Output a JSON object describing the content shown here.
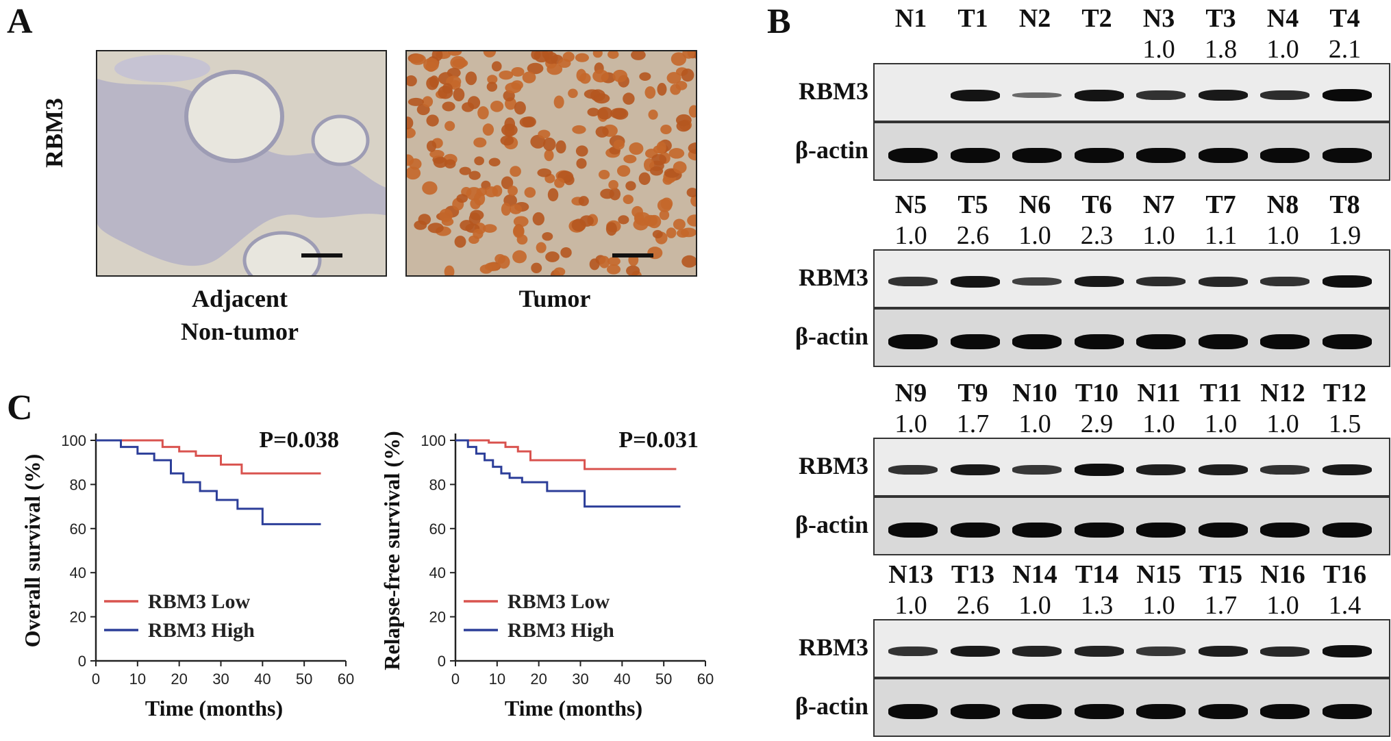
{
  "panels": {
    "A": {
      "letter": "A",
      "stain_label": "RBM3",
      "images": [
        {
          "caption_line1": "Adjacent",
          "caption_line2": "Non-tumor"
        },
        {
          "caption_line1": "Tumor",
          "caption_line2": ""
        }
      ]
    },
    "B": {
      "letter": "B",
      "row_labels": {
        "target": "RBM3",
        "control": "β-actin"
      },
      "blots": [
        {
          "lanes": [
            "N1",
            "T1",
            "N2",
            "T2",
            "N3",
            "T3",
            "N4",
            "T4"
          ],
          "ratios": [
            "",
            "",
            "",
            "",
            "1.0",
            "1.8",
            "1.0",
            "2.1"
          ],
          "intensity": [
            0.0,
            0.9,
            0.05,
            0.9,
            0.6,
            0.85,
            0.65,
            1.0
          ]
        },
        {
          "lanes": [
            "N5",
            "T5",
            "N6",
            "T6",
            "N7",
            "T7",
            "N8",
            "T8"
          ],
          "ratios": [
            "1.0",
            "2.6",
            "1.0",
            "2.3",
            "1.0",
            "1.1",
            "1.0",
            "1.9"
          ],
          "intensity": [
            0.6,
            0.9,
            0.45,
            0.85,
            0.65,
            0.7,
            0.6,
            0.95
          ]
        },
        {
          "lanes": [
            "N9",
            "T9",
            "N10",
            "T10",
            "N11",
            "T11",
            "N12",
            "T12"
          ],
          "ratios": [
            "1.0",
            "1.7",
            "1.0",
            "2.9",
            "1.0",
            "1.0",
            "1.0",
            "1.5"
          ],
          "intensity": [
            0.6,
            0.85,
            0.55,
            0.95,
            0.8,
            0.8,
            0.6,
            0.85
          ]
        },
        {
          "lanes": [
            "N13",
            "T13",
            "N14",
            "T14",
            "N15",
            "T15",
            "N16",
            "T16"
          ],
          "ratios": [
            "1.0",
            "2.6",
            "1.0",
            "1.3",
            "1.0",
            "1.7",
            "1.0",
            "1.4"
          ],
          "intensity": [
            0.6,
            0.85,
            0.75,
            0.75,
            0.55,
            0.8,
            0.7,
            0.95
          ]
        }
      ]
    },
    "C": {
      "letter": "C",
      "charts": [
        {
          "p_value": "P=0.038",
          "ylabel": "Overall survival (%)",
          "xlabel": "Time (months)",
          "xticks": [
            "0",
            "10",
            "20",
            "30",
            "40",
            "50",
            "60"
          ],
          "yticks": [
            "0",
            "20",
            "40",
            "60",
            "80",
            "100"
          ],
          "legend": [
            "RBM3 Low",
            "RBM3 High"
          ]
        },
        {
          "p_value": "P=0.031",
          "ylabel": "Relapse-free survival (%)",
          "xlabel": "Time (months)",
          "xticks": [
            "0",
            "10",
            "20",
            "30",
            "40",
            "50",
            "60"
          ],
          "yticks": [
            "0",
            "20",
            "40",
            "60",
            "80",
            "100"
          ],
          "legend": [
            "RBM3 Low",
            "RBM3 High"
          ]
        }
      ]
    }
  },
  "colors": {
    "low": "#d9534f",
    "high": "#2c3e99"
  },
  "chart_data": [
    {
      "type": "line",
      "xlabel": "Time (months)",
      "ylabel": "Overall survival (%)",
      "xlim": [
        0,
        60
      ],
      "ylim": [
        0,
        100
      ],
      "annotation": "P=0.038",
      "series": [
        {
          "name": "RBM3 Low",
          "x": [
            0,
            12,
            16,
            20,
            24,
            30,
            35,
            54
          ],
          "y": [
            100,
            100,
            97,
            95,
            93,
            89,
            85,
            85
          ]
        },
        {
          "name": "RBM3 High",
          "x": [
            0,
            6,
            10,
            14,
            18,
            21,
            25,
            29,
            34,
            40,
            54
          ],
          "y": [
            100,
            97,
            94,
            91,
            85,
            81,
            77,
            73,
            69,
            62,
            62
          ]
        }
      ]
    },
    {
      "type": "line",
      "xlabel": "Time (months)",
      "ylabel": "Relapse-free survival (%)",
      "xlim": [
        0,
        60
      ],
      "ylim": [
        0,
        100
      ],
      "annotation": "P=0.031",
      "series": [
        {
          "name": "RBM3 Low",
          "x": [
            0,
            8,
            12,
            15,
            18,
            31,
            53
          ],
          "y": [
            100,
            99,
            97,
            95,
            91,
            87,
            87
          ]
        },
        {
          "name": "RBM3 High",
          "x": [
            0,
            3,
            5,
            7,
            9,
            11,
            13,
            16,
            22,
            31,
            54
          ],
          "y": [
            100,
            97,
            94,
            91,
            88,
            85,
            83,
            81,
            77,
            70,
            70
          ]
        }
      ]
    }
  ]
}
